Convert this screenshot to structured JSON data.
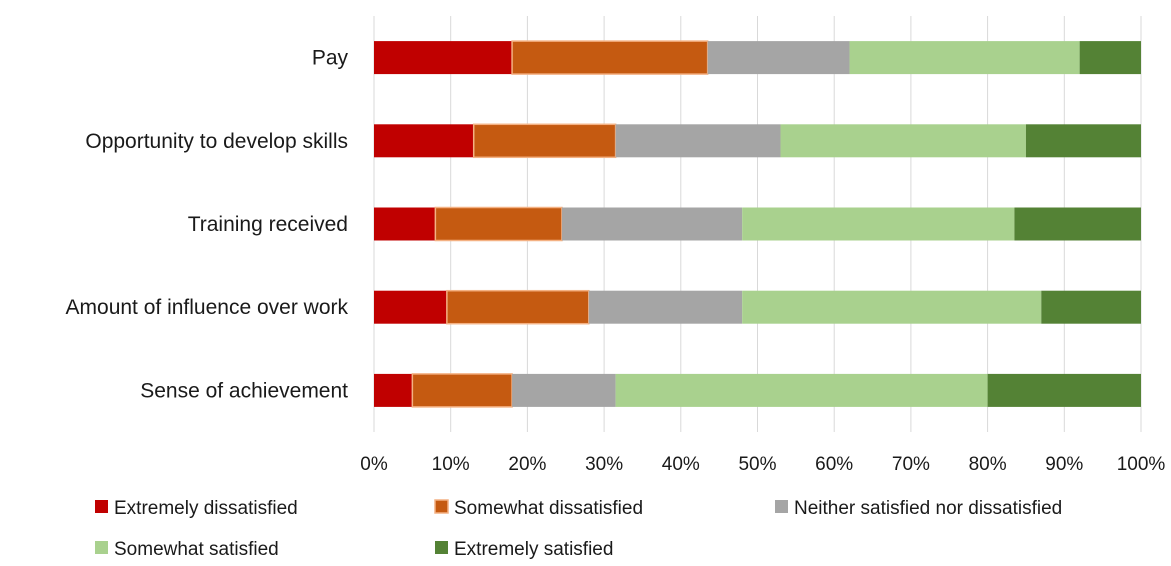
{
  "chart_data": {
    "type": "bar",
    "orientation": "horizontal",
    "stacked": "100%",
    "categories": [
      "Pay",
      "Opportunity to develop skills",
      "Training received",
      "Amount of influence over work",
      "Sense of achievement"
    ],
    "series": [
      {
        "name": "Extremely dissatisfied",
        "color": "#c00000",
        "values": [
          18,
          13,
          8,
          9.5,
          5
        ]
      },
      {
        "name": "Somewhat dissatisfied",
        "color": "#c55a11",
        "values": [
          25.5,
          18.5,
          16.5,
          18.5,
          13
        ]
      },
      {
        "name": "Neither satisfied nor dissatisfied",
        "color": "#a5a5a5",
        "values": [
          18.5,
          21.5,
          23.5,
          20,
          13.5
        ]
      },
      {
        "name": "Somewhat satisfied",
        "color": "#a9d18e",
        "values": [
          30,
          32,
          35.5,
          39,
          48.5
        ]
      },
      {
        "name": "Extremely satisfied",
        "color": "#548235",
        "values": [
          8,
          15,
          16.5,
          13,
          20
        ]
      }
    ],
    "xlim": [
      0,
      100
    ],
    "x_ticks": [
      "0%",
      "10%",
      "20%",
      "30%",
      "40%",
      "50%",
      "60%",
      "70%",
      "80%",
      "90%",
      "100%"
    ],
    "grid": true,
    "legend_position": "bottom",
    "title": "",
    "xlabel": "",
    "ylabel": ""
  }
}
